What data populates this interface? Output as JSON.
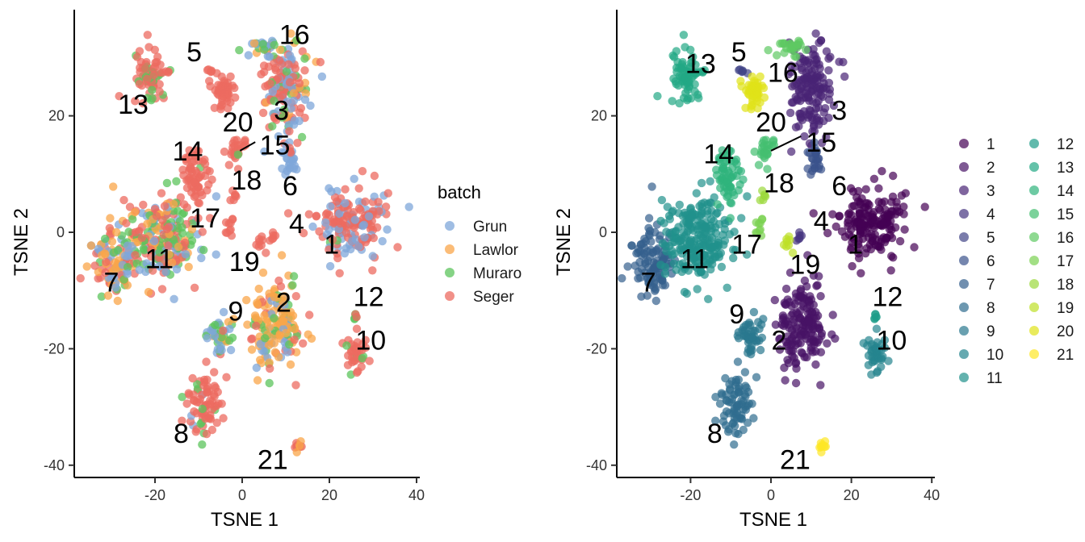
{
  "colors": {
    "batch": {
      "Grun": "#7fa7d9",
      "Lawlor": "#f9a64a",
      "Muraro": "#5cc45c",
      "Seger": "#ec6b60"
    },
    "clusters_viridis": [
      "#440154",
      "#471365",
      "#482475",
      "#463480",
      "#414487",
      "#3b528b",
      "#355f8d",
      "#2f6c8e",
      "#2a788e",
      "#25848e",
      "#21918c",
      "#1e9c89",
      "#22a884",
      "#2fb47c",
      "#44bf70",
      "#5ec962",
      "#7ad151",
      "#9bd93c",
      "#bddf26",
      "#dfe318",
      "#fde725"
    ]
  },
  "chart_data": [
    {
      "type": "scatter",
      "panel": "left",
      "color_by": "batch",
      "xlabel": "TSNE 1",
      "ylabel": "TSNE 2",
      "xlim": [
        -38,
        40
      ],
      "ylim": [
        -42,
        38
      ],
      "x_ticks": [
        -20,
        0,
        20,
        40
      ],
      "x_tick_labels": [
        "-20",
        "0",
        "20",
        "40"
      ],
      "y_ticks": [
        -40,
        -20,
        0,
        20
      ],
      "y_tick_labels": [
        "-40",
        "-20",
        "0",
        "20"
      ],
      "grid": false,
      "legend": {
        "title": "batch",
        "placement": "right",
        "entries": [
          "Grun",
          "Lawlor",
          "Muraro",
          "Seger"
        ]
      },
      "cluster_labels": [
        {
          "text": "1",
          "x": 20.5,
          "y": -2
        },
        {
          "text": "2",
          "x": 9.5,
          "y": -12
        },
        {
          "text": "3",
          "x": 9,
          "y": 21
        },
        {
          "text": "4",
          "x": 12.5,
          "y": 1.5
        },
        {
          "text": "5",
          "x": -11,
          "y": 31
        },
        {
          "text": "6",
          "x": 11,
          "y": 8
        },
        {
          "text": "7",
          "x": -30,
          "y": -8.5
        },
        {
          "text": "8",
          "x": -14,
          "y": -34.5
        },
        {
          "text": "9",
          "x": -1.5,
          "y": -13.5
        },
        {
          "text": "10",
          "x": 29.5,
          "y": -18.5
        },
        {
          "text": "11",
          "x": -19,
          "y": -4.5
        },
        {
          "text": "12",
          "x": 29,
          "y": -11
        },
        {
          "text": "13",
          "x": -25,
          "y": 22
        },
        {
          "text": "14",
          "x": -12.5,
          "y": 14
        },
        {
          "text": "15",
          "x": 7.5,
          "y": 15
        },
        {
          "text": "16",
          "x": 12,
          "y": 34
        },
        {
          "text": "17",
          "x": -8.5,
          "y": 2.5
        },
        {
          "text": "18",
          "x": 1,
          "y": 9
        },
        {
          "text": "19",
          "x": 0.5,
          "y": -5
        },
        {
          "text": "20",
          "x": -1,
          "y": 19
        },
        {
          "text": "21",
          "x": 7,
          "y": -39
        }
      ],
      "label_segments": [
        {
          "from": [
            -0.5,
            14
          ],
          "to": [
            3,
            15.5
          ]
        }
      ]
    },
    {
      "type": "scatter",
      "panel": "right",
      "color_by": "cluster",
      "xlabel": "TSNE 1",
      "ylabel": "TSNE 2",
      "xlim": [
        -38,
        40
      ],
      "ylim": [
        -42,
        38
      ],
      "x_ticks": [
        -20,
        0,
        20,
        40
      ],
      "x_tick_labels": [
        "-20",
        "0",
        "20",
        "40"
      ],
      "y_ticks": [
        -40,
        -20,
        0,
        20
      ],
      "y_tick_labels": [
        "-40",
        "-20",
        "0",
        "20"
      ],
      "grid": false,
      "legend": {
        "title": "",
        "placement": "right",
        "columns": 2,
        "entries": [
          "1",
          "2",
          "3",
          "4",
          "5",
          "6",
          "7",
          "8",
          "9",
          "10",
          "11",
          "12",
          "13",
          "14",
          "15",
          "16",
          "17",
          "18",
          "19",
          "20",
          "21"
        ]
      },
      "cluster_labels": [
        {
          "text": "1",
          "x": 21,
          "y": -2
        },
        {
          "text": "2",
          "x": 2,
          "y": -18.5
        },
        {
          "text": "3",
          "x": 17,
          "y": 21
        },
        {
          "text": "4",
          "x": 12.5,
          "y": 2
        },
        {
          "text": "5",
          "x": -8,
          "y": 31
        },
        {
          "text": "6",
          "x": 17,
          "y": 8
        },
        {
          "text": "7",
          "x": -30.5,
          "y": -8.5
        },
        {
          "text": "8",
          "x": -14,
          "y": -34.5
        },
        {
          "text": "9",
          "x": -8.5,
          "y": -14
        },
        {
          "text": "10",
          "x": 30,
          "y": -18.5
        },
        {
          "text": "11",
          "x": -19,
          "y": -4.5
        },
        {
          "text": "12",
          "x": 29,
          "y": -11
        },
        {
          "text": "13",
          "x": -17.5,
          "y": 29
        },
        {
          "text": "14",
          "x": -13,
          "y": 13.5
        },
        {
          "text": "15",
          "x": 12.5,
          "y": 15.5
        },
        {
          "text": "16",
          "x": 3,
          "y": 27.5
        },
        {
          "text": "17",
          "x": -6,
          "y": -2
        },
        {
          "text": "18",
          "x": 2,
          "y": 8.5
        },
        {
          "text": "19",
          "x": 8.5,
          "y": -5.5
        },
        {
          "text": "20",
          "x": 0,
          "y": 19
        },
        {
          "text": "21",
          "x": 6,
          "y": -39
        }
      ],
      "label_segments": [
        {
          "from": [
            0,
            14
          ],
          "to": [
            7.5,
            16.5
          ]
        }
      ]
    }
  ]
}
